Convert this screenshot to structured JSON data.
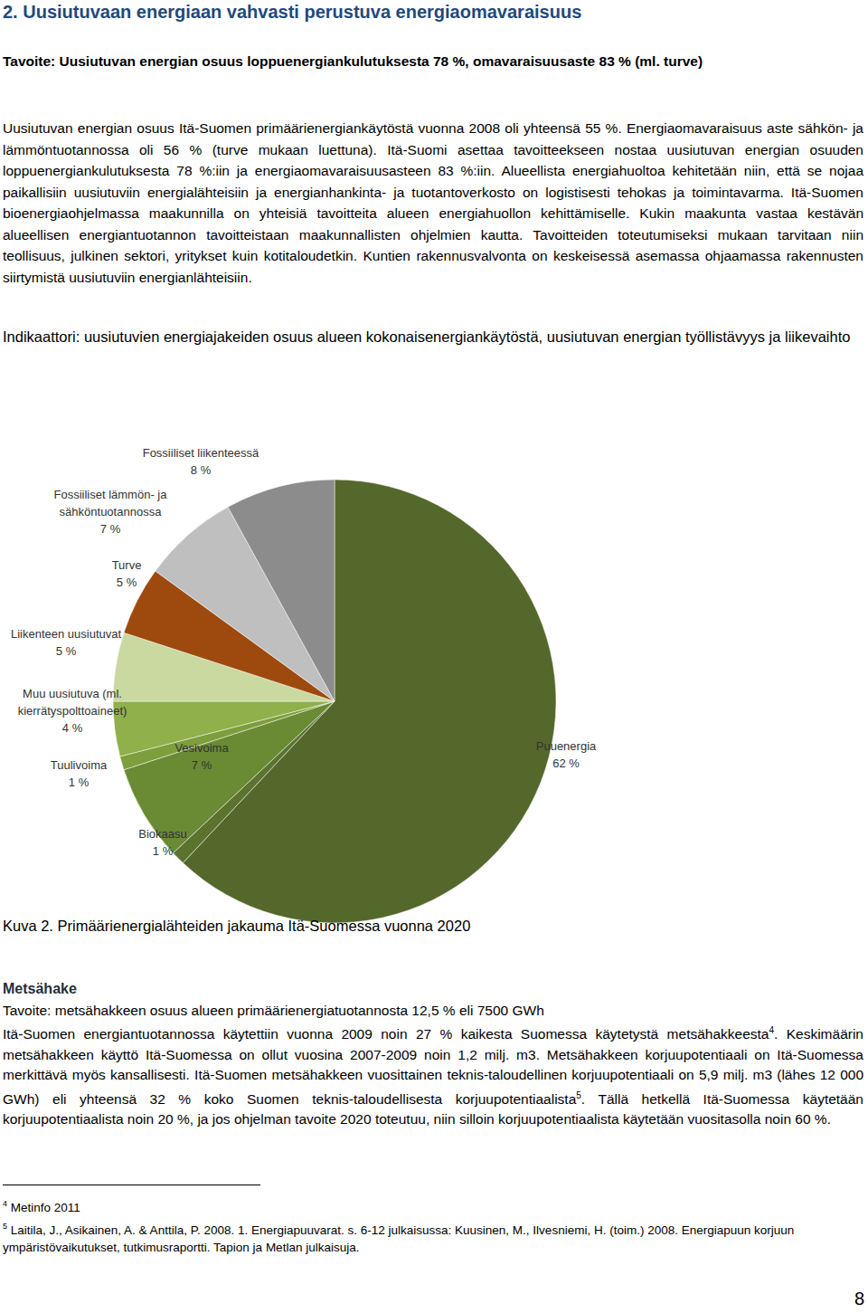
{
  "heading": "2. Uusiutuvaan energiaan vahvasti perustuva energiaomavaraisuus",
  "goal": "Tavoite: Uusiutuvan energian osuus loppuenergiankulutuksesta 78 %, omavaraisuusaste 83 % (ml. turve)",
  "paragraph": "Uusiutuvan energian osuus Itä-Suomen primäärienergiankäytöstä vuonna 2008 oli yhteensä 55 %. Energiaomavaraisuus aste sähkön- ja lämmöntuotannossa oli 56 % (turve mukaan luettuna). Itä-Suomi asettaa tavoitteekseen nostaa uusiutuvan energian osuuden loppuenergiankulutuksesta 78 %:iin ja energiaomavaraisuusasteen 83 %:iin. Alueellista energiahuoltoa kehitetään niin, että se nojaa paikallisiin uusiutuviin energialähteisiin ja energianhankinta- ja tuotantoverkosto on logistisesti tehokas ja toimintavarma. Itä-Suomen bioenergiaohjelmassa maakunnilla on yhteisiä tavoitteita alueen energiahuollon kehittämiselle. Kukin maakunta vastaa kestävän alueellisen energiantuotannon tavoitteistaan maakunnallisten ohjelmien kautta. Tavoitteiden toteutumiseksi mukaan tarvitaan niin teollisuus, julkinen sektori, yritykset kuin kotitaloudetkin. Kuntien rakennusvalvonta on keskeisessä asemassa ohjaamassa rakennusten siirtymistä uusiutuviin energianlähteisiin.",
  "indicator": "Indikaattori: uusiutuvien energiajakeiden osuus alueen kokonaisenergiankäytöstä, uusiutuvan energian työllistävyys ja liikevaihto",
  "chart_data": {
    "type": "pie",
    "categories": [
      "Puuenergia",
      "Biokaasu",
      "Vesivoima",
      "Tuulivoima",
      "Muu uusiutuva (ml. kierrätyspolttoaineet)",
      "Liikenteen uusiutuvat",
      "Turve",
      "Fossiiliset lämmön- ja sähköntuotannossa",
      "Fossiiliset liikenteessä"
    ],
    "values": [
      62,
      1,
      7,
      1,
      4,
      5,
      5,
      7,
      8
    ],
    "value_labels": [
      "62 %",
      "1 %",
      "7 %",
      "1 %",
      "4 %",
      "5 %",
      "5 %",
      "7 %",
      "8 %"
    ],
    "colors": [
      "#55682b",
      "#5c7330",
      "#6a8a33",
      "#7d9e3c",
      "#8fb04a",
      "#c9d9a0",
      "#9e4a0e",
      "#bfbfbf",
      "#8c8c8c"
    ]
  },
  "caption": "Kuva 2. Primäärienergialähteiden jakauma Itä-Suomessa vuonna 2020",
  "section": {
    "title": "Metsähake",
    "goal": "Tavoite: metsähakkeen osuus alueen primäärienergiatuotannosta 12,5 % eli 7500 GWh",
    "segments": [
      {
        "text": "Itä-Suomen energiantuotannossa käytettiin vuonna 2009 noin 27 % kaikesta Suomessa käytetystä metsähakkeesta"
      },
      {
        "sup": "4"
      },
      {
        "text": ". Keskimäärin metsähakkeen käyttö Itä-Suomessa on ollut vuosina 2007-2009 noin 1,2 milj. m3. Metsähakkeen korjuupotentiaali on Itä-Suomessa merkittävä myös kansallisesti. Itä-Suomen metsähakkeen vuosittainen teknis-taloudellinen korjuupotentiaali on 5,9 milj. m3 (lähes 12 000 GWh) eli yhteensä 32 % koko Suomen teknis-taloudellisesta korjuupotentiaalista"
      },
      {
        "sup": "5"
      },
      {
        "text": ". Tällä hetkellä Itä-Suomessa käytetään korjuupotentiaalista noin 20 %, ja jos ohjelman tavoite 2020 toteutuu, niin silloin korjuupotentiaalista käytetään vuositasolla noin 60 %."
      }
    ]
  },
  "footnotes": [
    {
      "mark": "4",
      "text": "Metinfo 2011"
    },
    {
      "mark": "5",
      "text": "Laitila, J., Asikainen, A. & Anttila, P. 2008. 1. Energiapuuvarat. s. 6-12 julkaisussa: Kuusinen, M., Ilvesniemi, H. (toim.) 2008. Energiapuun korjuun ympäristövaikutukset, tutkimusraportti. Tapion ja Metlan julkaisuja."
    }
  ],
  "page_number": 8
}
